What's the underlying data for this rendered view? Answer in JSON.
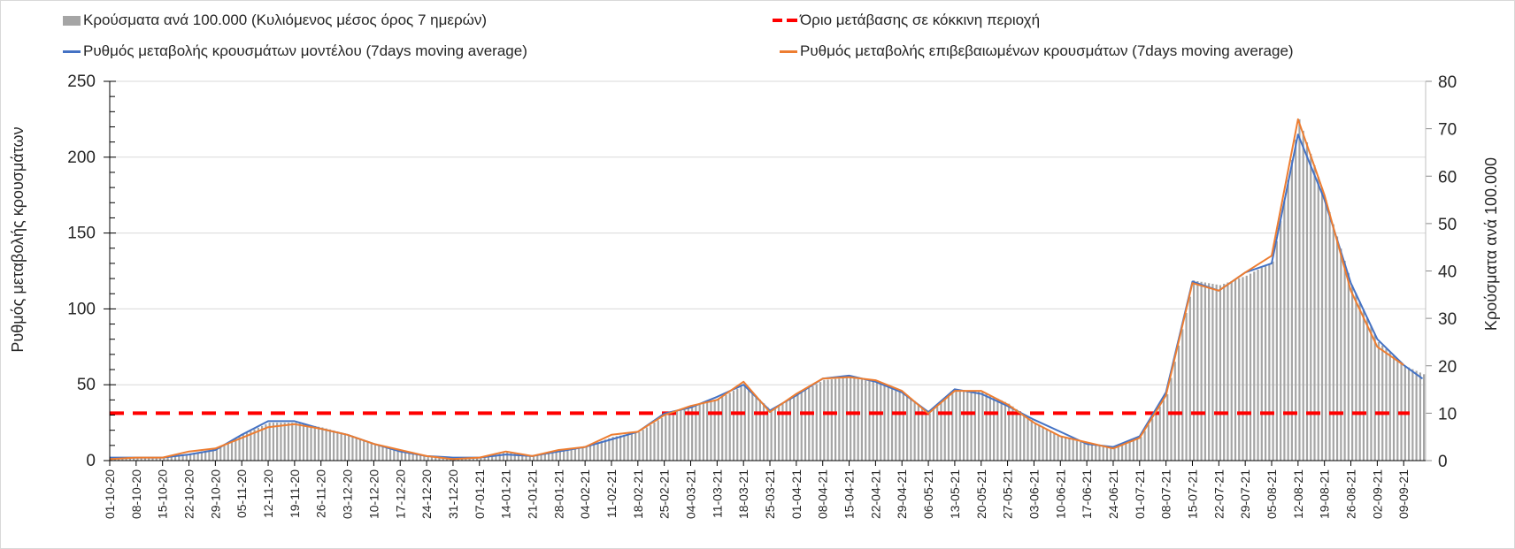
{
  "chart_data": {
    "type": "bar+line",
    "legend": {
      "bars": "Κρούσματα ανά 100.000 (Κυλιόμενος μέσος όρος 7 ημερών)",
      "threshold": "Όριο μετάβασης σε κόκκινη περιοχή",
      "model": "Ρυθμός μεταβολής κρουσμάτων μοντέλου (7days moving average)",
      "confirmed": "Ρυθμός μεταβολής επιβεβαιωμένων κρουσμάτων (7days moving average)"
    },
    "ylabel_left": "Ρυθμός μεταβολής κρουσμάτων",
    "ylabel_right": "Κρούσματα ανά 100.000",
    "ylim_left": [
      0,
      250
    ],
    "yticks_left": [
      "0",
      "50",
      "100",
      "150",
      "200",
      "250"
    ],
    "ylim_right": [
      0,
      80
    ],
    "yticks_right": [
      "0",
      "10",
      "20",
      "30",
      "40",
      "50",
      "60",
      "70",
      "80"
    ],
    "threshold_right": 10,
    "x_ticks": [
      "01-10-20",
      "08-10-20",
      "15-10-20",
      "22-10-20",
      "29-10-20",
      "05-11-20",
      "12-11-20",
      "19-11-20",
      "26-11-20",
      "03-12-20",
      "10-12-20",
      "17-12-20",
      "24-12-20",
      "31-12-20",
      "07-01-21",
      "14-01-21",
      "21-01-21",
      "28-01-21",
      "04-02-21",
      "11-02-21",
      "18-02-21",
      "25-02-21",
      "04-03-21",
      "11-03-21",
      "18-03-21",
      "25-03-21",
      "01-04-21",
      "08-04-21",
      "15-04-21",
      "22-04-21",
      "29-04-21",
      "06-05-21",
      "13-05-21",
      "20-05-21",
      "27-05-21",
      "03-06-21",
      "10-06-21",
      "17-06-21",
      "24-06-21",
      "01-07-21",
      "08-07-21",
      "15-07-21",
      "22-07-21",
      "29-07-21",
      "05-08-21",
      "12-08-21",
      "19-08-21",
      "26-08-21",
      "02-09-21",
      "09-09-21"
    ],
    "series": [
      {
        "name": "bars_cases_per_100k",
        "axis": "right",
        "values": [
          0.5,
          0.6,
          0.6,
          1.5,
          2.5,
          5.5,
          8,
          8,
          7,
          5.5,
          3.5,
          2,
          1,
          0.5,
          0.5,
          1.8,
          1,
          2.2,
          3,
          5,
          6,
          9.5,
          11.5,
          13,
          16,
          10.5,
          14,
          17,
          17.5,
          16.5,
          14.5,
          10,
          15,
          14.5,
          12,
          8,
          5,
          3.5,
          2.5,
          5,
          14,
          38,
          37,
          39,
          42,
          72,
          55,
          37,
          25,
          20,
          17.5
        ]
      },
      {
        "name": "model_rate",
        "axis": "left",
        "values": [
          2,
          2,
          2,
          4,
          7,
          17,
          26,
          26,
          21,
          17,
          11,
          6,
          3,
          2,
          2,
          4,
          3,
          6,
          9,
          14,
          19,
          31,
          35,
          42,
          50,
          33,
          43,
          54,
          56,
          52,
          45,
          32,
          47,
          44,
          36,
          27,
          19,
          11,
          9,
          16,
          45,
          118,
          112,
          124,
          130,
          215,
          172,
          117,
          80,
          63,
          54
        ]
      },
      {
        "name": "confirmed_rate",
        "axis": "left",
        "values": [
          1,
          2,
          2,
          6,
          8,
          15,
          22,
          24,
          21,
          17,
          11,
          7,
          3,
          1,
          2,
          6,
          3,
          7,
          9,
          17,
          19,
          30,
          36,
          40,
          52,
          32,
          44,
          54,
          55,
          53,
          46,
          31,
          46,
          46,
          37,
          25,
          16,
          12,
          8,
          15,
          43,
          117,
          112,
          124,
          135,
          225,
          175,
          112,
          75,
          63
        ]
      }
    ],
    "colors": {
      "bars": "#a5a5a5",
      "model": "#4472c4",
      "confirmed": "#ed7d31",
      "threshold": "#ff0000",
      "grid": "#d9d9d9"
    }
  }
}
